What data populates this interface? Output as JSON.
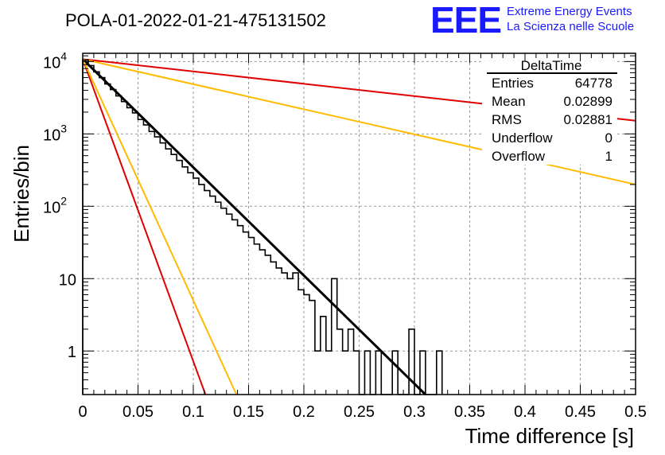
{
  "chart_data": {
    "type": "histogram",
    "title": "POLA-01-2022-01-21-475131502",
    "xlabel": "Time difference [s]",
    "ylabel": "Entries/bin",
    "xlim": [
      0,
      0.5
    ],
    "ylim": [
      0.25,
      13000
    ],
    "yscale": "log",
    "grid": true,
    "x_ticks": [
      "0",
      "0.05",
      "0.1",
      "0.15",
      "0.2",
      "0.25",
      "0.3",
      "0.35",
      "0.4",
      "0.45",
      "0.5"
    ],
    "y_ticks": [
      {
        "base": "10",
        "exp": "4"
      },
      {
        "base": "10",
        "exp": "3"
      },
      {
        "base": "10",
        "exp": "2"
      },
      {
        "base": "",
        "text": "10"
      },
      {
        "base": "",
        "text": "1"
      }
    ],
    "histogram": {
      "bin_width": 0.005,
      "color": "#000000",
      "bins": [
        {
          "x": 0.0,
          "y": 10500
        },
        {
          "x": 0.005,
          "y": 8800
        },
        {
          "x": 0.01,
          "y": 7200
        },
        {
          "x": 0.015,
          "y": 6000
        },
        {
          "x": 0.02,
          "y": 4900
        },
        {
          "x": 0.025,
          "y": 4100
        },
        {
          "x": 0.03,
          "y": 3350
        },
        {
          "x": 0.035,
          "y": 2800
        },
        {
          "x": 0.04,
          "y": 2300
        },
        {
          "x": 0.045,
          "y": 1950
        },
        {
          "x": 0.05,
          "y": 1580
        },
        {
          "x": 0.055,
          "y": 1330
        },
        {
          "x": 0.06,
          "y": 1080
        },
        {
          "x": 0.065,
          "y": 910
        },
        {
          "x": 0.07,
          "y": 750
        },
        {
          "x": 0.075,
          "y": 620
        },
        {
          "x": 0.08,
          "y": 520
        },
        {
          "x": 0.085,
          "y": 430
        },
        {
          "x": 0.09,
          "y": 350
        },
        {
          "x": 0.095,
          "y": 290
        },
        {
          "x": 0.1,
          "y": 245
        },
        {
          "x": 0.105,
          "y": 200
        },
        {
          "x": 0.11,
          "y": 165
        },
        {
          "x": 0.115,
          "y": 138
        },
        {
          "x": 0.12,
          "y": 114
        },
        {
          "x": 0.125,
          "y": 94
        },
        {
          "x": 0.13,
          "y": 78
        },
        {
          "x": 0.135,
          "y": 65
        },
        {
          "x": 0.14,
          "y": 54
        },
        {
          "x": 0.145,
          "y": 44
        },
        {
          "x": 0.15,
          "y": 37
        },
        {
          "x": 0.155,
          "y": 30
        },
        {
          "x": 0.16,
          "y": 25
        },
        {
          "x": 0.165,
          "y": 21
        },
        {
          "x": 0.17,
          "y": 17
        },
        {
          "x": 0.175,
          "y": 14
        },
        {
          "x": 0.18,
          "y": 12
        },
        {
          "x": 0.185,
          "y": 10
        },
        {
          "x": 0.19,
          "y": 12
        },
        {
          "x": 0.195,
          "y": 7
        },
        {
          "x": 0.2,
          "y": 6
        },
        {
          "x": 0.205,
          "y": 5
        },
        {
          "x": 0.21,
          "y": 1
        },
        {
          "x": 0.215,
          "y": 3
        },
        {
          "x": 0.22,
          "y": 1
        },
        {
          "x": 0.225,
          "y": 10
        },
        {
          "x": 0.23,
          "y": 2
        },
        {
          "x": 0.235,
          "y": 1
        },
        {
          "x": 0.24,
          "y": 2
        },
        {
          "x": 0.245,
          "y": 1
        },
        {
          "x": 0.25,
          "y": 0
        },
        {
          "x": 0.255,
          "y": 1
        },
        {
          "x": 0.26,
          "y": 0
        },
        {
          "x": 0.265,
          "y": 1
        },
        {
          "x": 0.27,
          "y": 0
        },
        {
          "x": 0.275,
          "y": 0
        },
        {
          "x": 0.28,
          "y": 1
        },
        {
          "x": 0.285,
          "y": 0
        },
        {
          "x": 0.29,
          "y": 0
        },
        {
          "x": 0.295,
          "y": 2
        },
        {
          "x": 0.3,
          "y": 0
        },
        {
          "x": 0.305,
          "y": 1
        },
        {
          "x": 0.31,
          "y": 0
        },
        {
          "x": 0.315,
          "y": 0
        },
        {
          "x": 0.32,
          "y": 1
        }
      ]
    },
    "lines": [
      {
        "color": "#000000",
        "width": 3,
        "points": [
          [
            0,
            10800
          ],
          [
            0.31,
            0.25
          ]
        ]
      },
      {
        "color": "#e00000",
        "width": 2,
        "points": [
          [
            0,
            10800
          ],
          [
            0.5,
            1520
          ]
        ]
      },
      {
        "color": "#ffbb00",
        "width": 2,
        "points": [
          [
            0,
            10800
          ],
          [
            0.5,
            200
          ]
        ]
      },
      {
        "color": "#e00000",
        "width": 2,
        "points": [
          [
            0,
            10800
          ],
          [
            0.111,
            0.25
          ]
        ]
      },
      {
        "color": "#ffbb00",
        "width": 2,
        "points": [
          [
            0,
            10800
          ],
          [
            0.139,
            0.25
          ]
        ]
      }
    ],
    "stats_box": {
      "name": "DeltaTime",
      "rows": [
        {
          "label": "Entries",
          "value": "64778"
        },
        {
          "label": "Mean",
          "value": "0.02899"
        },
        {
          "label": "RMS",
          "value": "0.02881"
        },
        {
          "label": "Underflow",
          "value": "0"
        },
        {
          "label": "Overflow",
          "value": "1"
        }
      ]
    }
  },
  "logo": {
    "letters": "EEE",
    "line1": "Extreme Energy Events",
    "line2": "La Scienza nelle Scuole",
    "color": "#1a1aff"
  }
}
